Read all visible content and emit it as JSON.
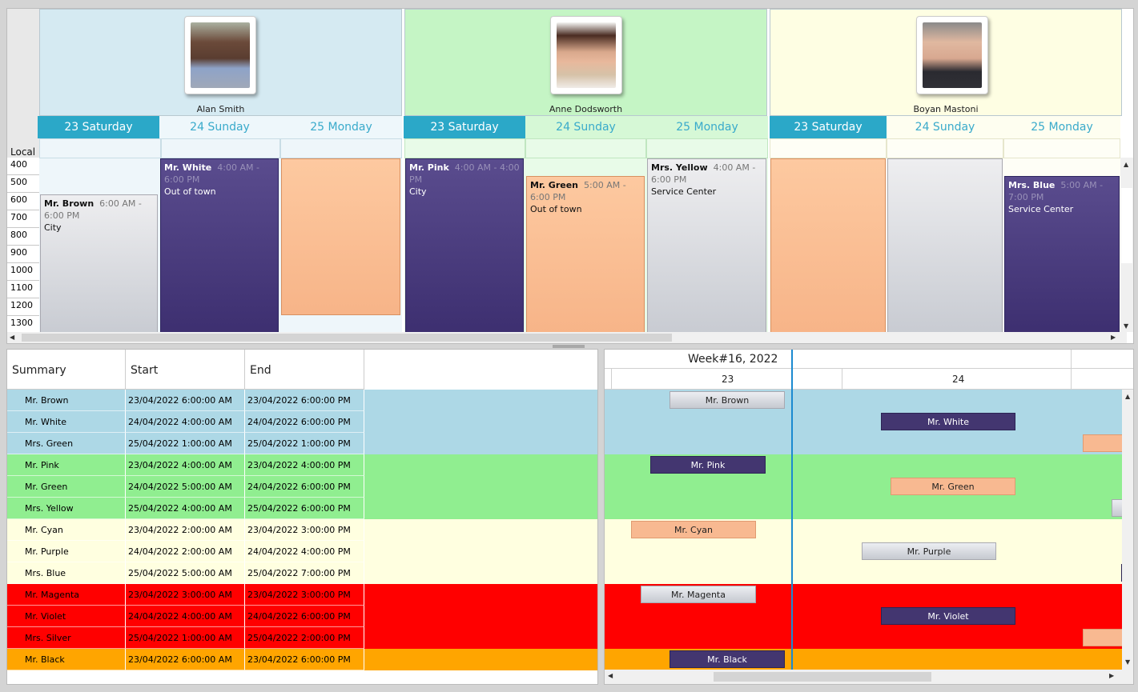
{
  "scheduler": {
    "resources": [
      {
        "name": "Alan Smith",
        "bg": "#d5eaf2"
      },
      {
        "name": "Anne Dodsworth",
        "bg": "#c5f5c5"
      },
      {
        "name": "Boyan Mastoni",
        "bg": "#fefee3"
      }
    ],
    "days": [
      "23 Saturday",
      "24 Sunday",
      "25 Monday"
    ],
    "local_label": "Local",
    "hours": [
      "400",
      "500",
      "600",
      "700",
      "800",
      "900",
      "1000",
      "1100",
      "1200",
      "1300"
    ],
    "appointments": [
      {
        "title": "Mr. Brown",
        "time": "6:00 AM - 6:00 PM",
        "location": "City",
        "style": "gray"
      },
      {
        "title": "Mr. White",
        "time": "4:00 AM - 6:00 PM",
        "location": "Out of town",
        "style": "purple"
      },
      {
        "title": "Mr. Pink",
        "time": "4:00 AM - 4:00 PM",
        "location": "City",
        "style": "purple"
      },
      {
        "title": "Mr. Green",
        "time": "5:00 AM - 6:00 PM",
        "location": "Out of town",
        "style": "orange"
      },
      {
        "title": "Mrs. Yellow",
        "time": "4:00 AM - 6:00 PM",
        "location": "Service Center",
        "style": "gray"
      },
      {
        "title": "Mrs. Blue",
        "time": "5:00 AM - 7:00 PM",
        "location": "Service Center",
        "style": "purple"
      }
    ]
  },
  "grid": {
    "columns": [
      "Summary",
      "Start",
      "End"
    ],
    "rows": [
      {
        "summary": "Mr. Brown",
        "start": "23/04/2022 6:00:00 AM",
        "end": "23/04/2022 6:00:00 PM",
        "bg": "#add8e6"
      },
      {
        "summary": "Mr. White",
        "start": "24/04/2022 4:00:00 AM",
        "end": "24/04/2022 6:00:00 PM",
        "bg": "#add8e6"
      },
      {
        "summary": "Mrs. Green",
        "start": "25/04/2022 1:00:00 AM",
        "end": "25/04/2022 1:00:00 PM",
        "bg": "#add8e6"
      },
      {
        "summary": "Mr. Pink",
        "start": "23/04/2022 4:00:00 AM",
        "end": "23/04/2022 4:00:00 PM",
        "bg": "#90ee90"
      },
      {
        "summary": "Mr. Green",
        "start": "24/04/2022 5:00:00 AM",
        "end": "24/04/2022 6:00:00 PM",
        "bg": "#90ee90"
      },
      {
        "summary": "Mrs. Yellow",
        "start": "25/04/2022 4:00:00 AM",
        "end": "25/04/2022 6:00:00 PM",
        "bg": "#90ee90"
      },
      {
        "summary": "Mr. Cyan",
        "start": "23/04/2022 2:00:00 AM",
        "end": "23/04/2022 3:00:00 PM",
        "bg": "#ffffe0"
      },
      {
        "summary": "Mr. Purple",
        "start": "24/04/2022 2:00:00 AM",
        "end": "24/04/2022 4:00:00 PM",
        "bg": "#ffffe0"
      },
      {
        "summary": "Mrs. Blue",
        "start": "25/04/2022 5:00:00 AM",
        "end": "25/04/2022 7:00:00 PM",
        "bg": "#ffffe0"
      },
      {
        "summary": "Mr. Magenta",
        "start": "23/04/2022 3:00:00 AM",
        "end": "23/04/2022 3:00:00 PM",
        "bg": "#ff0000"
      },
      {
        "summary": "Mr. Violet",
        "start": "24/04/2022 4:00:00 AM",
        "end": "24/04/2022 6:00:00 PM",
        "bg": "#ff0000"
      },
      {
        "summary": "Mrs. Silver",
        "start": "25/04/2022 1:00:00 AM",
        "end": "25/04/2022 2:00:00 PM",
        "bg": "#ff0000"
      },
      {
        "summary": "Mr. Black",
        "start": "23/04/2022 6:00:00 AM",
        "end": "23/04/2022 6:00:00 PM",
        "bg": "#ffa500"
      }
    ]
  },
  "gantt": {
    "week_label": "Week#16, 2022",
    "day_labels": [
      "23",
      "24"
    ],
    "bars": [
      {
        "label": "Mr. Brown",
        "style": "gray"
      },
      {
        "label": "Mr. White",
        "style": "purple"
      },
      {
        "label": "",
        "style": "orange"
      },
      {
        "label": "Mr. Pink",
        "style": "purple"
      },
      {
        "label": "Mr. Green",
        "style": "orange"
      },
      {
        "label": "",
        "style": "gray"
      },
      {
        "label": "Mr. Cyan",
        "style": "orange"
      },
      {
        "label": "Mr. Purple",
        "style": "gray"
      },
      {
        "label": "",
        "style": "purple"
      },
      {
        "label": "Mr. Magenta",
        "style": "gray"
      },
      {
        "label": "Mr. Violet",
        "style": "purple"
      },
      {
        "label": "",
        "style": "orange"
      },
      {
        "label": "Mr. Black",
        "style": "purple"
      }
    ]
  }
}
